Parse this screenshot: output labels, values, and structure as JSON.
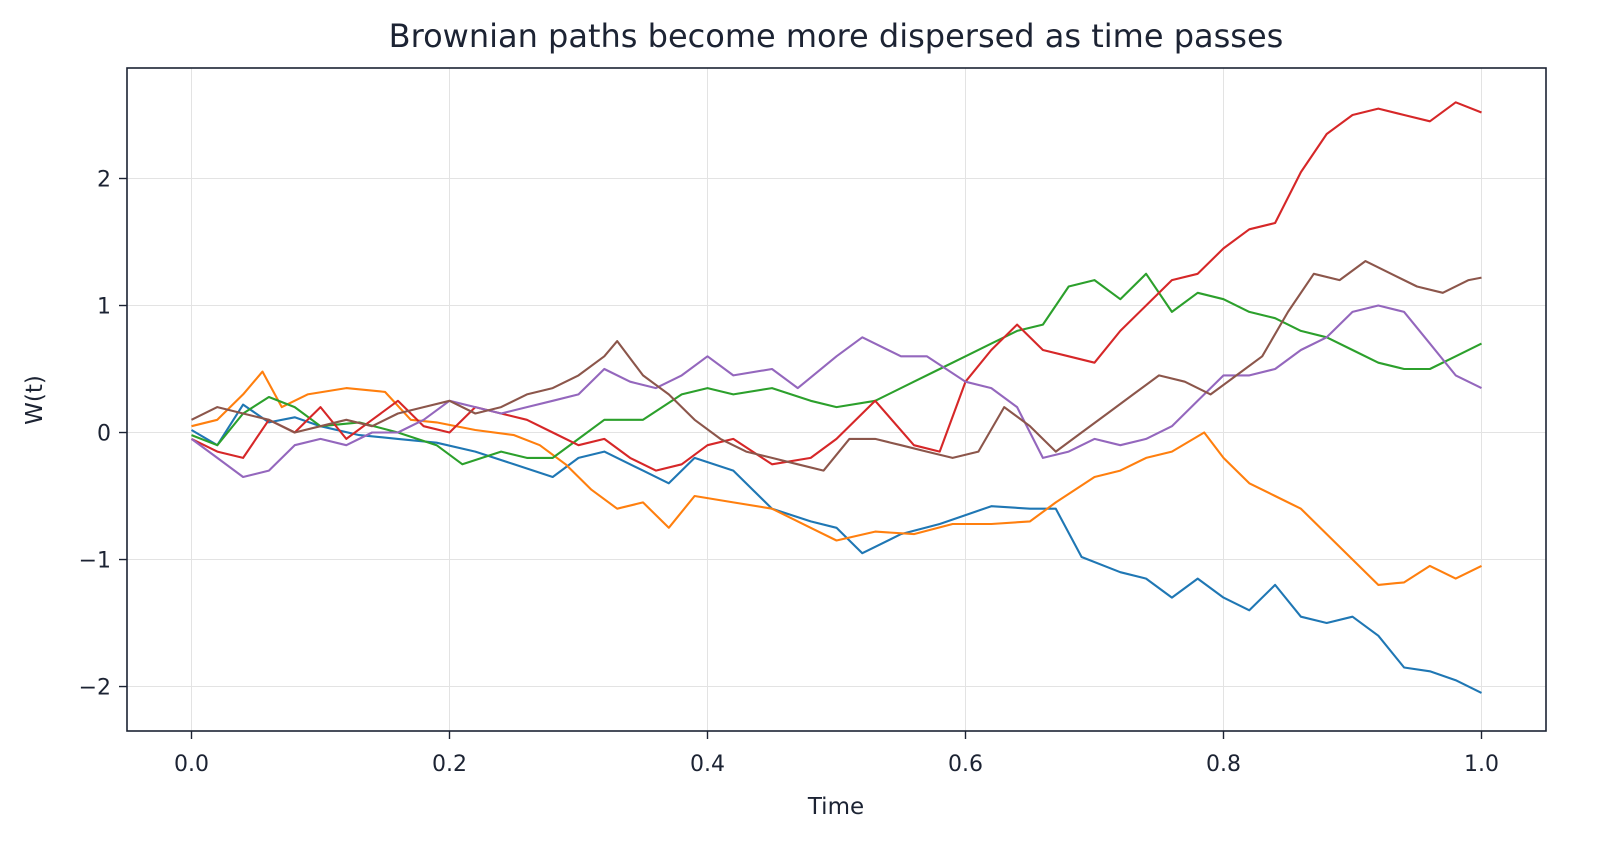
{
  "chart_data": {
    "type": "line",
    "title": "Brownian paths become more dispersed as time passes",
    "xlabel": "Time",
    "ylabel": "W(t)",
    "xlim": [
      -0.05,
      1.05
    ],
    "ylim": [
      -2.35,
      2.87
    ],
    "grid": true,
    "legend": "none",
    "x_ticks": [
      {
        "value": 0.0,
        "label": "0.0"
      },
      {
        "value": 0.2,
        "label": "0.2"
      },
      {
        "value": 0.4,
        "label": "0.4"
      },
      {
        "value": 0.6,
        "label": "0.6"
      },
      {
        "value": 0.8,
        "label": "0.8"
      },
      {
        "value": 1.0,
        "label": "1.0"
      }
    ],
    "y_ticks": [
      {
        "value": -2,
        "label": "−2"
      },
      {
        "value": -1,
        "label": "−1"
      },
      {
        "value": 0,
        "label": "0"
      },
      {
        "value": 1,
        "label": "1"
      },
      {
        "value": 2,
        "label": "2"
      }
    ],
    "series": [
      {
        "color": "#1f77b4",
        "x": [
          0,
          0.02,
          0.04,
          0.06,
          0.08,
          0.1,
          0.13,
          0.16,
          0.19,
          0.22,
          0.25,
          0.28,
          0.3,
          0.32,
          0.35,
          0.37,
          0.39,
          0.42,
          0.45,
          0.48,
          0.5,
          0.52,
          0.55,
          0.58,
          0.6,
          0.62,
          0.65,
          0.67,
          0.69,
          0.72,
          0.74,
          0.76,
          0.78,
          0.8,
          0.82,
          0.84,
          0.86,
          0.88,
          0.9,
          0.92,
          0.94,
          0.96,
          0.98,
          1.0
        ],
        "y": [
          0.02,
          -0.1,
          0.22,
          0.08,
          0.12,
          0.05,
          -0.02,
          -0.05,
          -0.08,
          -0.15,
          -0.25,
          -0.35,
          -0.2,
          -0.15,
          -0.3,
          -0.4,
          -0.2,
          -0.3,
          -0.6,
          -0.7,
          -0.75,
          -0.95,
          -0.8,
          -0.72,
          -0.65,
          -0.58,
          -0.6,
          -0.6,
          -0.98,
          -1.1,
          -1.15,
          -1.3,
          -1.15,
          -1.3,
          -1.4,
          -1.2,
          -1.45,
          -1.5,
          -1.45,
          -1.6,
          -1.85,
          -1.88,
          -1.95,
          -2.05
        ]
      },
      {
        "color": "#ff7f0e",
        "x": [
          0,
          0.02,
          0.04,
          0.055,
          0.07,
          0.09,
          0.12,
          0.15,
          0.17,
          0.19,
          0.22,
          0.25,
          0.27,
          0.29,
          0.31,
          0.33,
          0.35,
          0.37,
          0.39,
          0.42,
          0.45,
          0.48,
          0.5,
          0.53,
          0.56,
          0.59,
          0.62,
          0.65,
          0.67,
          0.7,
          0.72,
          0.74,
          0.76,
          0.785,
          0.8,
          0.82,
          0.84,
          0.86,
          0.88,
          0.9,
          0.92,
          0.94,
          0.96,
          0.98,
          1.0
        ],
        "y": [
          0.05,
          0.1,
          0.3,
          0.48,
          0.2,
          0.3,
          0.35,
          0.32,
          0.1,
          0.08,
          0.02,
          -0.02,
          -0.1,
          -0.25,
          -0.45,
          -0.6,
          -0.55,
          -0.75,
          -0.5,
          -0.55,
          -0.6,
          -0.75,
          -0.85,
          -0.78,
          -0.8,
          -0.72,
          -0.72,
          -0.7,
          -0.55,
          -0.35,
          -0.3,
          -0.2,
          -0.15,
          0.0,
          -0.2,
          -0.4,
          -0.5,
          -0.6,
          -0.8,
          -1.0,
          -1.2,
          -1.18,
          -1.05,
          -1.15,
          -1.05
        ]
      },
      {
        "color": "#2ca02c",
        "x": [
          0,
          0.02,
          0.04,
          0.06,
          0.08,
          0.1,
          0.13,
          0.16,
          0.19,
          0.21,
          0.24,
          0.26,
          0.28,
          0.3,
          0.32,
          0.35,
          0.38,
          0.4,
          0.42,
          0.45,
          0.48,
          0.5,
          0.53,
          0.56,
          0.58,
          0.6,
          0.62,
          0.64,
          0.66,
          0.68,
          0.7,
          0.72,
          0.74,
          0.76,
          0.78,
          0.8,
          0.82,
          0.84,
          0.86,
          0.88,
          0.9,
          0.92,
          0.94,
          0.96,
          0.98,
          1.0
        ],
        "y": [
          -0.02,
          -0.1,
          0.15,
          0.28,
          0.2,
          0.05,
          0.08,
          0.0,
          -0.1,
          -0.25,
          -0.15,
          -0.2,
          -0.2,
          -0.05,
          0.1,
          0.1,
          0.3,
          0.35,
          0.3,
          0.35,
          0.25,
          0.2,
          0.25,
          0.4,
          0.5,
          0.6,
          0.7,
          0.8,
          0.85,
          1.15,
          1.2,
          1.05,
          1.25,
          0.95,
          1.1,
          1.05,
          0.95,
          0.9,
          0.8,
          0.75,
          0.65,
          0.55,
          0.5,
          0.5,
          0.6,
          0.7
        ]
      },
      {
        "color": "#d62728",
        "x": [
          0,
          0.02,
          0.04,
          0.06,
          0.08,
          0.1,
          0.12,
          0.14,
          0.16,
          0.18,
          0.2,
          0.22,
          0.24,
          0.26,
          0.28,
          0.3,
          0.32,
          0.34,
          0.36,
          0.38,
          0.4,
          0.42,
          0.45,
          0.48,
          0.5,
          0.53,
          0.56,
          0.58,
          0.6,
          0.62,
          0.64,
          0.66,
          0.68,
          0.7,
          0.72,
          0.74,
          0.76,
          0.78,
          0.8,
          0.82,
          0.84,
          0.86,
          0.88,
          0.9,
          0.92,
          0.94,
          0.96,
          0.98,
          1.0
        ],
        "y": [
          -0.05,
          -0.15,
          -0.2,
          0.1,
          0.0,
          0.2,
          -0.05,
          0.1,
          0.25,
          0.05,
          0.0,
          0.2,
          0.15,
          0.1,
          0.0,
          -0.1,
          -0.05,
          -0.2,
          -0.3,
          -0.25,
          -0.1,
          -0.05,
          -0.25,
          -0.2,
          -0.05,
          0.25,
          -0.1,
          -0.15,
          0.4,
          0.65,
          0.85,
          0.65,
          0.6,
          0.55,
          0.8,
          1.0,
          1.2,
          1.25,
          1.45,
          1.6,
          1.65,
          2.05,
          2.35,
          2.5,
          2.55,
          2.5,
          2.45,
          2.6,
          2.52
        ]
      },
      {
        "color": "#9467bd",
        "x": [
          0,
          0.02,
          0.04,
          0.06,
          0.08,
          0.1,
          0.12,
          0.14,
          0.16,
          0.18,
          0.2,
          0.22,
          0.24,
          0.26,
          0.28,
          0.3,
          0.32,
          0.34,
          0.36,
          0.38,
          0.4,
          0.42,
          0.45,
          0.47,
          0.5,
          0.52,
          0.55,
          0.57,
          0.6,
          0.62,
          0.64,
          0.66,
          0.68,
          0.7,
          0.72,
          0.74,
          0.76,
          0.78,
          0.8,
          0.82,
          0.84,
          0.86,
          0.88,
          0.9,
          0.92,
          0.94,
          0.96,
          0.98,
          1.0
        ],
        "y": [
          -0.05,
          -0.2,
          -0.35,
          -0.3,
          -0.1,
          -0.05,
          -0.1,
          0.0,
          0.0,
          0.1,
          0.25,
          0.2,
          0.15,
          0.2,
          0.25,
          0.3,
          0.5,
          0.4,
          0.35,
          0.45,
          0.6,
          0.45,
          0.5,
          0.35,
          0.6,
          0.75,
          0.6,
          0.6,
          0.4,
          0.35,
          0.2,
          -0.2,
          -0.15,
          -0.05,
          -0.1,
          -0.05,
          0.05,
          0.25,
          0.45,
          0.45,
          0.5,
          0.65,
          0.75,
          0.95,
          1.0,
          0.95,
          0.7,
          0.45,
          0.35
        ]
      },
      {
        "color": "#8c564b",
        "x": [
          0,
          0.02,
          0.04,
          0.06,
          0.08,
          0.1,
          0.12,
          0.14,
          0.16,
          0.18,
          0.2,
          0.22,
          0.24,
          0.26,
          0.28,
          0.3,
          0.32,
          0.33,
          0.35,
          0.37,
          0.39,
          0.41,
          0.43,
          0.45,
          0.47,
          0.49,
          0.51,
          0.53,
          0.55,
          0.57,
          0.59,
          0.61,
          0.63,
          0.65,
          0.67,
          0.69,
          0.71,
          0.73,
          0.75,
          0.77,
          0.79,
          0.81,
          0.83,
          0.85,
          0.87,
          0.89,
          0.91,
          0.93,
          0.95,
          0.97,
          0.99,
          1.0
        ],
        "y": [
          0.1,
          0.2,
          0.15,
          0.1,
          0.0,
          0.05,
          0.1,
          0.05,
          0.15,
          0.2,
          0.25,
          0.15,
          0.2,
          0.3,
          0.35,
          0.45,
          0.6,
          0.72,
          0.45,
          0.3,
          0.1,
          -0.05,
          -0.15,
          -0.2,
          -0.25,
          -0.3,
          -0.05,
          -0.05,
          -0.1,
          -0.15,
          -0.2,
          -0.15,
          0.2,
          0.05,
          -0.15,
          0.0,
          0.15,
          0.3,
          0.45,
          0.4,
          0.3,
          0.45,
          0.6,
          0.95,
          1.25,
          1.2,
          1.35,
          1.25,
          1.15,
          1.1,
          1.2,
          1.22
        ]
      }
    ]
  }
}
